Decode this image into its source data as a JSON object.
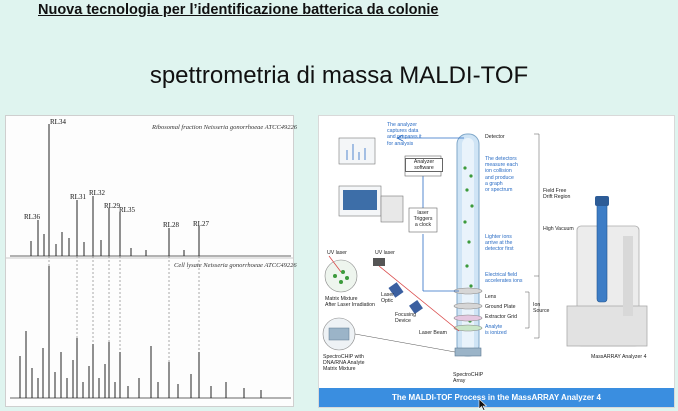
{
  "slide": {
    "top_title": "Nuova tecnologia per l’identificazione batterica da colonie",
    "main_title": "spettrometria di massa MALDI-TOF"
  },
  "spectra": {
    "top_label": "Ribosomal fraction Neisseria gonorrhoeae ATCC49226",
    "bottom_label": "Cell lysate Neisseria gonorrhoeae ATCC49226",
    "peak_labels": [
      "RL34",
      "RL36",
      "RL31",
      "RL32",
      "RL29",
      "RL35",
      "RL28",
      "RL27"
    ]
  },
  "diagram": {
    "analyzer_note": "The analyzer\ncaptures data\nand prepares it\nfor analysis",
    "analyzer_box": "Analyzer\nsoftware",
    "laser_box": "laser\nTriggers\na clock",
    "detector": "Detector",
    "detectors_note": "The detectors\nmeasure each\nion collision\nand produce\na graph\nor spectrum",
    "field_free": "Field Free\nDrift Region",
    "high_vacuum": "High Vacuum",
    "lighter_ions": "Lighter ions\narrive at the\ndetector first",
    "electrical_field": "Electrical field\naccelerates ions",
    "lens": "Lens",
    "ground_plate": "Ground Plate",
    "extractor_grid": "Extractor Grid",
    "analyte": "Analyte\nis ionized",
    "ion_source": "Ion\nSource",
    "uv_laser_1": "UV laser",
    "uv_laser_2": "UV laser",
    "laser_optic": "Laser\nOptic",
    "focusing_device": "Focusing\nDevice",
    "laser_beam": "Laser Beam",
    "matrix_mixture": "Matrix Mixture\nAfter Laser Irradiation",
    "spectrochip_mix": "SpectroCHIP with\nDNA/RNA Analyte\nMatrix Mixture",
    "spectrochip_array": "SpectroCHIP\nArray",
    "instrument_label": "MassARRAY Analyzer 4",
    "caption": "The MALDI-TOF Process in the MassARRAY Analyzer 4"
  }
}
